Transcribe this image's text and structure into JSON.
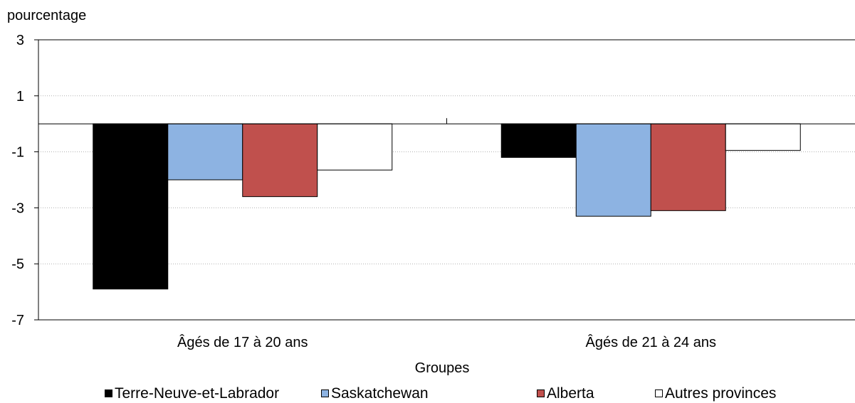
{
  "chart_data": {
    "type": "bar",
    "ylabel": "pourcentage",
    "xlabel": "Groupes",
    "categories": [
      "Âgés de 17 à 20 ans",
      "Âgés de 21 à 24 ans"
    ],
    "ylim": [
      -7,
      3
    ],
    "yticks": [
      "3",
      "1",
      "-1",
      "-3",
      "-5",
      "-7"
    ],
    "grid": true,
    "legend_position": "bottom",
    "series": [
      {
        "name": "Terre-Neuve-et-Labrador",
        "color": "#000000",
        "values": [
          -5.9,
          -1.2
        ]
      },
      {
        "name": "Saskatchewan",
        "color": "#8db3e2",
        "values": [
          -2.0,
          -3.3
        ]
      },
      {
        "name": "Alberta",
        "color": "#c0504d",
        "values": [
          -2.6,
          -3.1
        ]
      },
      {
        "name": "Autres provinces",
        "color": "#ffffff",
        "values": [
          -1.65,
          -0.95
        ]
      }
    ]
  }
}
